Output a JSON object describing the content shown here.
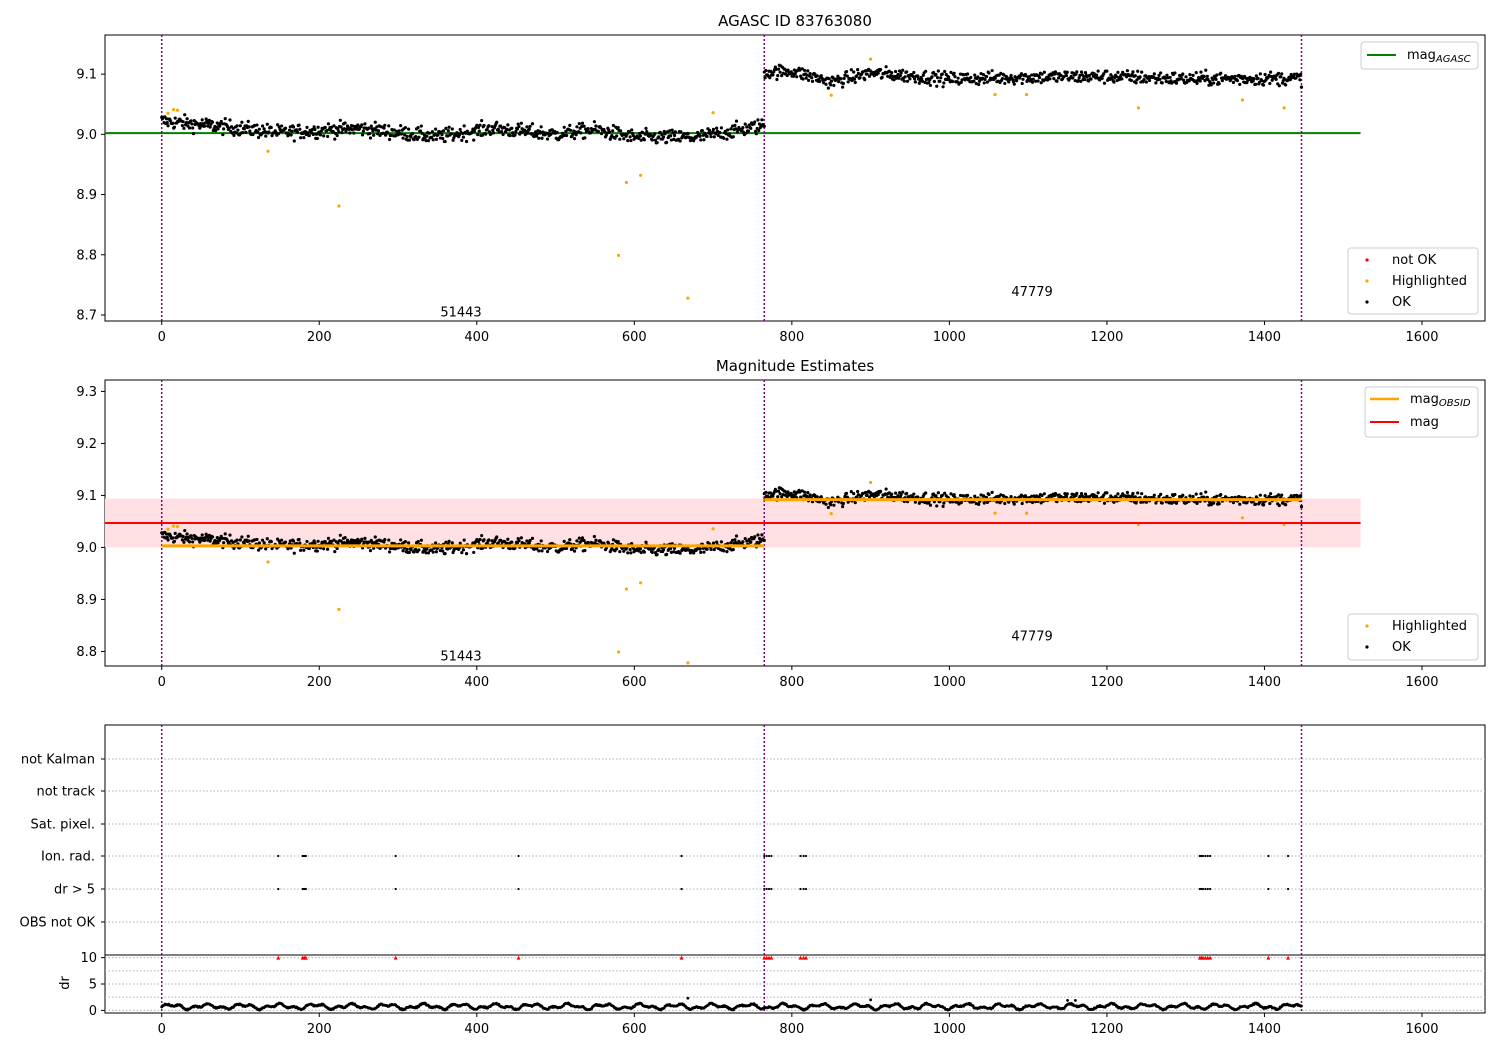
{
  "colors": {
    "ok": "#000000",
    "highlighted": "#ffa500",
    "not_ok": "#ff0000",
    "mag_agasc": "#008000",
    "mag_obsid": "#ffa500",
    "mag": "#ff0000",
    "mag_band": "#ffe0e3",
    "obs_divider": "#800080",
    "grid": "#b0b0b0"
  },
  "chart_data": [
    {
      "type": "scatter",
      "title": "AGASC ID 83763080",
      "x_range": [
        -72,
        1680
      ],
      "ylim": [
        8.69,
        9.165
      ],
      "x_ticks": [
        "0",
        "200",
        "400",
        "600",
        "800",
        "1000",
        "1200",
        "1400",
        "1600"
      ],
      "y_ticks": [
        "8.7",
        "8.8",
        "8.9",
        "9.0",
        "9.1"
      ],
      "legend_top": {
        "placement": "top-right",
        "entries": [
          {
            "text": "mag",
            "sub": "AGASC"
          }
        ]
      },
      "legend_bottom": {
        "placement": "bottom-right",
        "entries": [
          "not OK",
          "Highlighted",
          "OK"
        ]
      },
      "mag_agasc": {
        "value": 9.002,
        "x": [
          -72,
          1522
        ]
      },
      "obs_dividers": [
        0,
        765,
        1447
      ],
      "obs_labels": [
        {
          "text": "51443",
          "x": 380,
          "y": 8.704
        },
        {
          "text": "47779",
          "x": 1105,
          "y": 8.738
        }
      ],
      "ok_segments": [
        {
          "x0": 0,
          "x1": 765,
          "base": [
            [
              0,
              9.022
            ],
            [
              60,
              9.015
            ],
            [
              150,
              9.003
            ],
            [
              250,
              9.01
            ],
            [
              350,
              8.996
            ],
            [
              420,
              9.01
            ],
            [
              500,
              9.0
            ],
            [
              550,
              9.008
            ],
            [
              600,
              8.995
            ],
            [
              680,
              8.995
            ],
            [
              765,
              9.015
            ]
          ],
          "noise": 0.011,
          "n": 760
        },
        {
          "x0": 765,
          "x1": 1447,
          "base": [
            [
              765,
              9.103
            ],
            [
              800,
              9.105
            ],
            [
              850,
              9.087
            ],
            [
              900,
              9.102
            ],
            [
              1000,
              9.092
            ],
            [
              1100,
              9.095
            ],
            [
              1200,
              9.096
            ],
            [
              1300,
              9.092
            ],
            [
              1447,
              9.093
            ]
          ],
          "noise": 0.01,
          "n": 680
        }
      ],
      "highlighted": [
        [
          8,
          9.035
        ],
        [
          15,
          9.041
        ],
        [
          20,
          9.04
        ],
        [
          135,
          8.972
        ],
        [
          225,
          8.881
        ],
        [
          580,
          8.799
        ],
        [
          590,
          8.92
        ],
        [
          608,
          8.932
        ],
        [
          668,
          8.728
        ],
        [
          700,
          9.036
        ],
        [
          850,
          9.065
        ],
        [
          900,
          9.125
        ],
        [
          1058,
          9.066
        ],
        [
          1098,
          9.066
        ],
        [
          1240,
          9.044
        ],
        [
          1372,
          9.057
        ],
        [
          1425,
          9.044
        ]
      ]
    },
    {
      "type": "scatter",
      "title": "Magnitude Estimates",
      "x_range": [
        -72,
        1680
      ],
      "ylim": [
        8.772,
        9.322
      ],
      "x_ticks": [
        "0",
        "200",
        "400",
        "600",
        "800",
        "1000",
        "1200",
        "1400",
        "1600"
      ],
      "y_ticks": [
        "8.8",
        "8.9",
        "9.0",
        "9.1",
        "9.2",
        "9.3"
      ],
      "legend_top": {
        "placement": "top-right",
        "entries": [
          {
            "text": "mag",
            "sub": "OBSID"
          },
          {
            "text": "mag",
            "sub": ""
          }
        ]
      },
      "legend_bottom": {
        "placement": "bottom-right",
        "entries": [
          "Highlighted",
          "OK"
        ]
      },
      "mag": {
        "value": 9.047,
        "band": [
          9.0,
          9.094
        ],
        "x": [
          -72,
          1522
        ]
      },
      "mag_obsid": [
        {
          "x0": 0,
          "x1": 765,
          "value": 9.003
        },
        {
          "x0": 765,
          "x1": 1447,
          "value": 9.092
        }
      ],
      "obs_dividers": [
        0,
        765,
        1447
      ],
      "obs_labels": [
        {
          "text": "51443",
          "x": 380,
          "y": 8.79
        },
        {
          "text": "47779",
          "x": 1105,
          "y": 8.829
        }
      ]
    },
    {
      "type": "scatter",
      "title": "",
      "x_range": [
        -72,
        1680
      ],
      "x_ticks": [
        "0",
        "200",
        "400",
        "600",
        "800",
        "1000",
        "1200",
        "1400",
        "1600"
      ],
      "flag_rows": [
        "not Kalman",
        "not track",
        "Sat. pixel.",
        "Ion. rad.",
        "dr > 5",
        "OBS not OK"
      ],
      "flag_points": {
        "Ion. rad.": [
          148,
          179,
          181,
          183,
          297,
          453,
          660,
          765,
          768,
          771,
          774,
          811,
          815,
          818,
          1318,
          1320,
          1322,
          1325,
          1328,
          1331,
          1405,
          1430
        ],
        "dr > 5": [
          148,
          179,
          181,
          183,
          297,
          453,
          660,
          765,
          768,
          771,
          774,
          811,
          815,
          818,
          1318,
          1320,
          1322,
          1325,
          1328,
          1331,
          1405,
          1430
        ]
      },
      "dr": {
        "ylabel": "dr",
        "ylim": [
          -0.5,
          10.5
        ],
        "y_ticks": [
          "0",
          "5",
          "10"
        ],
        "clipped_x": [
          148,
          179,
          181,
          183,
          297,
          453,
          660,
          765,
          768,
          771,
          774,
          811,
          815,
          818,
          1318,
          1320,
          1322,
          1325,
          1328,
          1331,
          1405,
          1430
        ],
        "clipped_value": 10,
        "spikes": [
          [
            668,
            2.3
          ],
          [
            900,
            2.0
          ],
          [
            1150,
            1.9
          ],
          [
            1160,
            1.9
          ]
        ]
      },
      "obs_dividers": [
        0,
        765,
        1447
      ]
    }
  ]
}
